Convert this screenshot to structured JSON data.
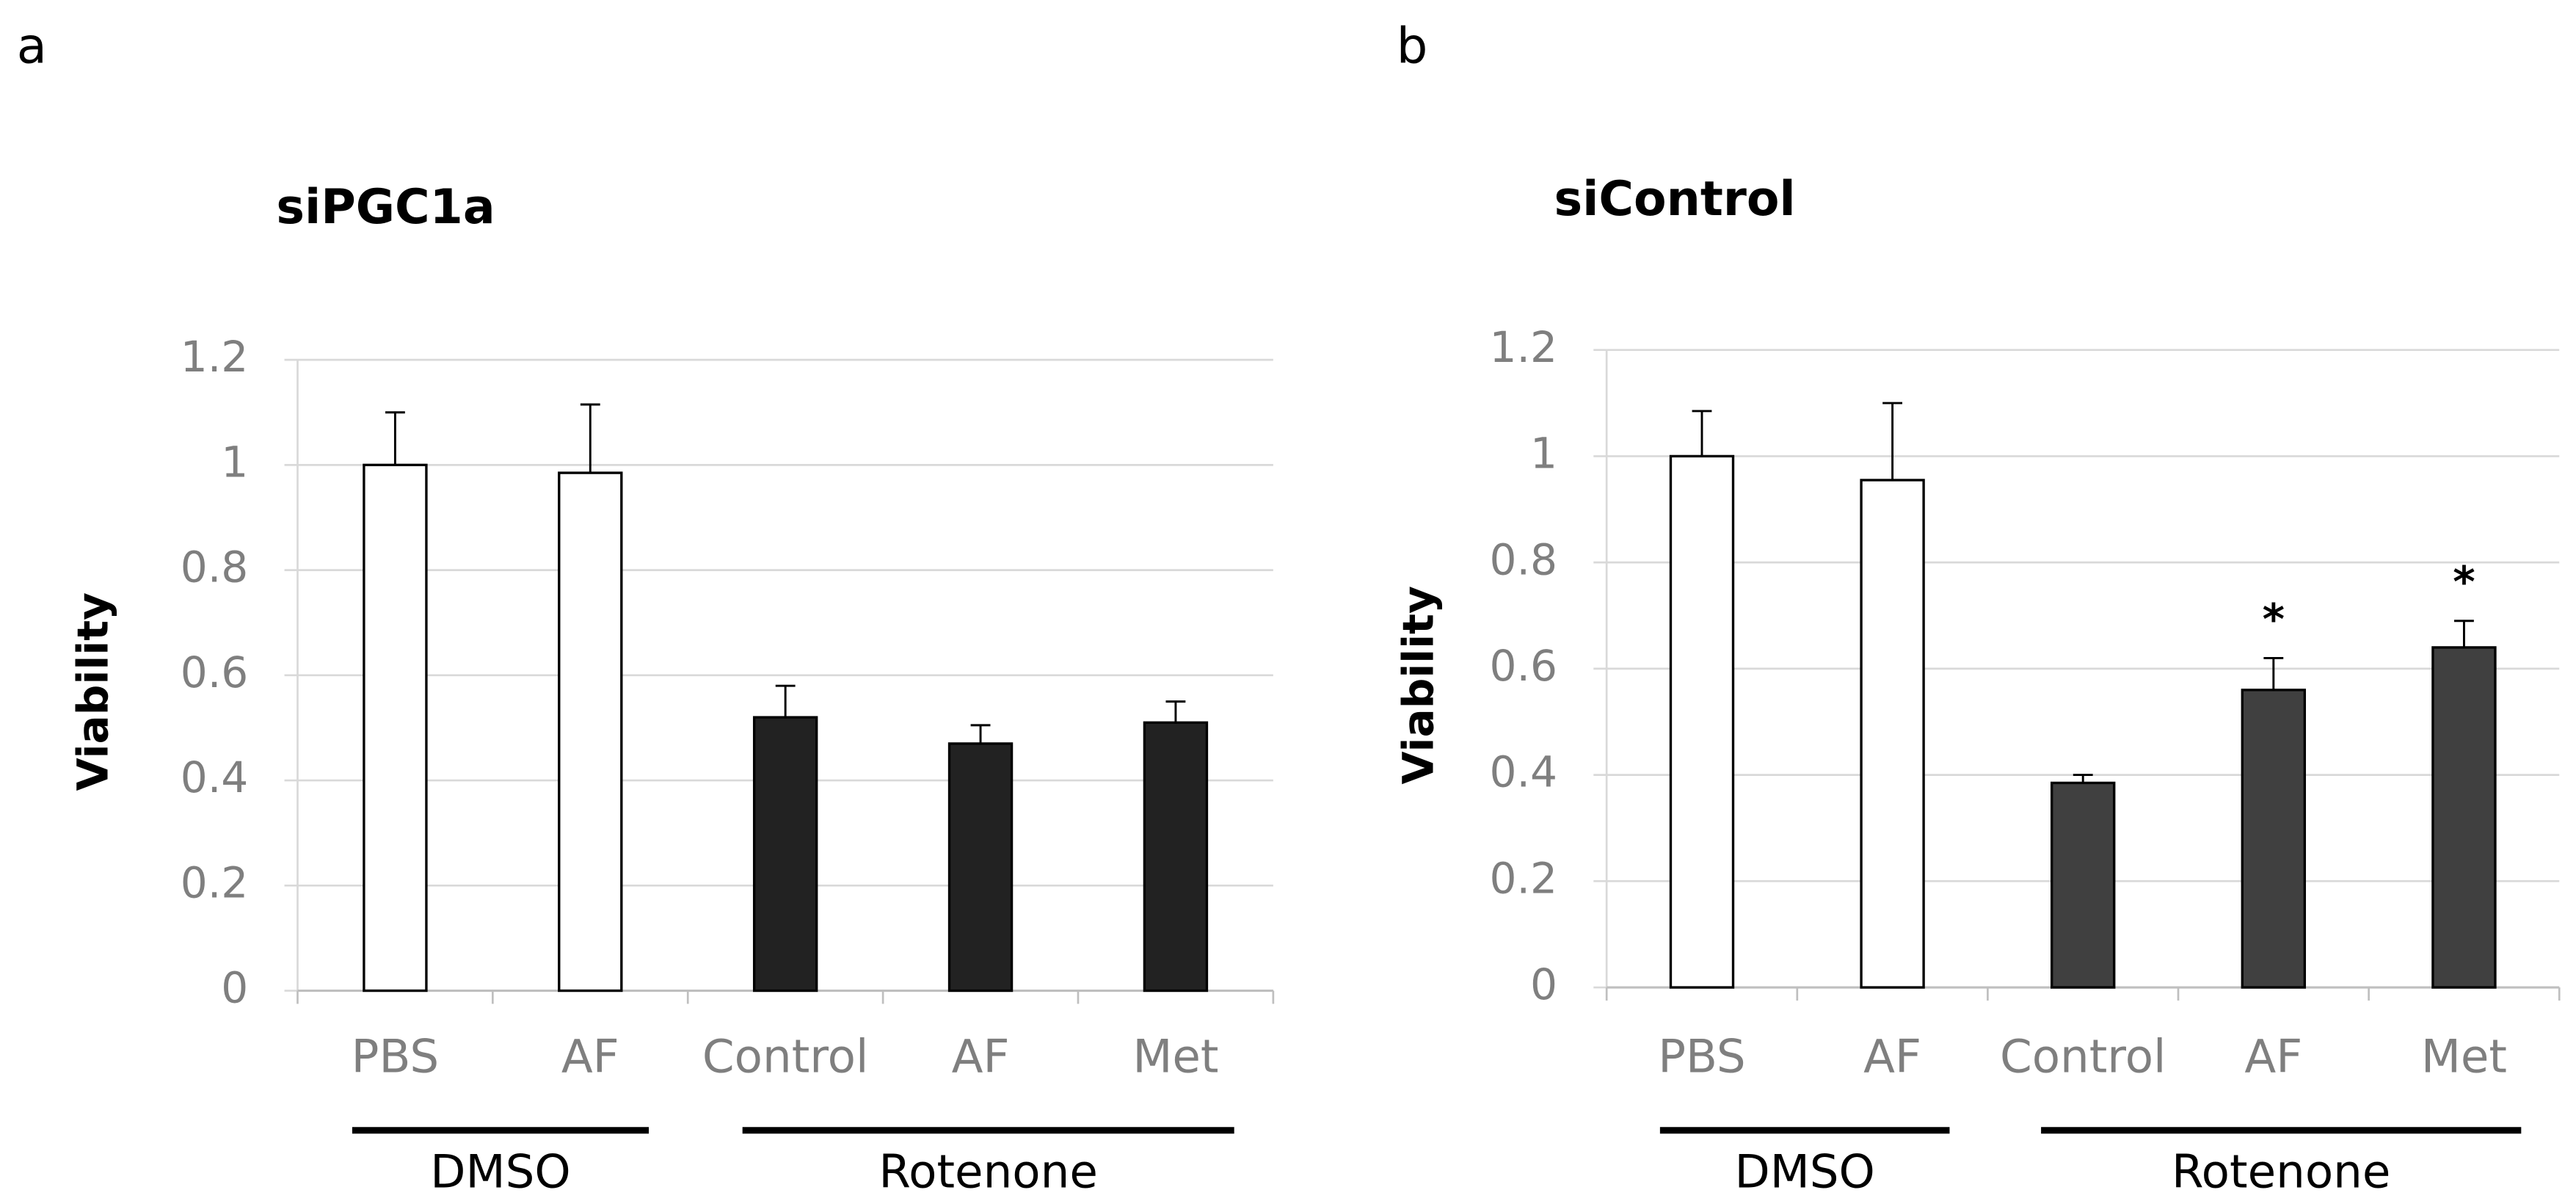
{
  "chart_data": [
    {
      "type": "bar",
      "panel_label": "a",
      "title": "siPGC1a",
      "y_label": "Viability",
      "categories": [
        "PBS",
        "AF",
        "Control",
        "AF",
        "Met"
      ],
      "group_labels": [
        "DMSO",
        "DMSO",
        "Rotenone",
        "Rotenone",
        "Rotenone"
      ],
      "values": [
        1.0,
        0.985,
        0.52,
        0.47,
        0.51
      ],
      "errors": [
        0.1,
        0.13,
        0.06,
        0.035,
        0.04
      ],
      "colors": [
        "#ffffff",
        "#ffffff",
        "#222222",
        "#222222",
        "#222222"
      ],
      "ylim": [
        0,
        1.2
      ],
      "yticks": [
        0,
        0.2,
        0.4,
        0.6,
        0.8,
        1,
        1.2
      ],
      "grid": true
    },
    {
      "type": "bar",
      "panel_label": "b",
      "title": "siControl",
      "y_label": "Viability",
      "categories": [
        "PBS",
        "AF",
        "Control",
        "AF",
        "Met"
      ],
      "group_labels": [
        "DMSO",
        "DMSO",
        "Rotenone",
        "Rotenone",
        "Rotenone"
      ],
      "values": [
        1.0,
        0.955,
        0.385,
        0.56,
        0.64
      ],
      "errors": [
        0.085,
        0.145,
        0.015,
        0.06,
        0.05
      ],
      "annotations": [
        null,
        null,
        null,
        "*",
        "*"
      ],
      "colors": [
        "#ffffff",
        "#ffffff",
        "#404040",
        "#404040",
        "#404040"
      ],
      "ylim": [
        0,
        1.2
      ],
      "yticks": [
        0,
        0.2,
        0.4,
        0.6,
        0.8,
        1,
        1.2
      ],
      "grid": true
    }
  ]
}
